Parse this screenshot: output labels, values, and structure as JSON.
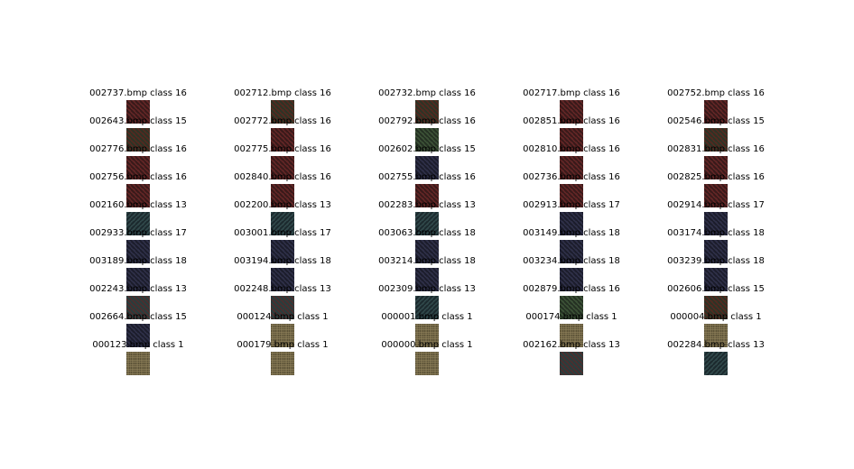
{
  "columns": [
    {
      "rows": [
        {
          "label": "002737.bmp class 16",
          "texture": "red"
        },
        {
          "label": "002643.bmp class 15",
          "texture": "redg"
        },
        {
          "label": "002776.bmp class 16",
          "texture": "red"
        },
        {
          "label": "002756.bmp class 16",
          "texture": "red"
        },
        {
          "label": "002160.bmp class 13",
          "texture": "teal"
        },
        {
          "label": "002933.bmp class 17",
          "texture": "navy"
        },
        {
          "label": "003189.bmp class 18",
          "texture": "navy"
        },
        {
          "label": "002243.bmp class 13",
          "texture": "mixed"
        },
        {
          "label": "002664.bmp class 15",
          "texture": "navy"
        },
        {
          "label": "000123.bmp class 1",
          "texture": "tan"
        }
      ]
    },
    {
      "rows": [
        {
          "label": "002712.bmp class 16",
          "texture": "redg"
        },
        {
          "label": "002772.bmp class 16",
          "texture": "red"
        },
        {
          "label": "002775.bmp class 16",
          "texture": "red"
        },
        {
          "label": "002840.bmp class 16",
          "texture": "red"
        },
        {
          "label": "002200.bmp class 13",
          "texture": "teal"
        },
        {
          "label": "003001.bmp class 17",
          "texture": "navy"
        },
        {
          "label": "003194.bmp class 18",
          "texture": "navy"
        },
        {
          "label": "002248.bmp class 13",
          "texture": "mixed"
        },
        {
          "label": "000124.bmp class 1",
          "texture": "tan"
        },
        {
          "label": "000179.bmp class 1",
          "texture": "tan"
        }
      ]
    },
    {
      "rows": [
        {
          "label": "002732.bmp class 16",
          "texture": "redg"
        },
        {
          "label": "002792.bmp class 16",
          "texture": "green"
        },
        {
          "label": "002602.bmp class 15",
          "texture": "navy"
        },
        {
          "label": "002755.bmp class 16",
          "texture": "red"
        },
        {
          "label": "002283.bmp class 13",
          "texture": "teal"
        },
        {
          "label": "003063.bmp class 18",
          "texture": "navy"
        },
        {
          "label": "003214.bmp class 18",
          "texture": "navy"
        },
        {
          "label": "002309.bmp class 13",
          "texture": "teal"
        },
        {
          "label": "000001.bmp class 1",
          "texture": "tan"
        },
        {
          "label": "000000.bmp class 1",
          "texture": "tan"
        }
      ]
    },
    {
      "rows": [
        {
          "label": "002717.bmp class 16",
          "texture": "red"
        },
        {
          "label": "002851.bmp class 16",
          "texture": "red"
        },
        {
          "label": "002810.bmp class 16",
          "texture": "red"
        },
        {
          "label": "002736.bmp class 16",
          "texture": "red"
        },
        {
          "label": "002913.bmp class 17",
          "texture": "navy"
        },
        {
          "label": "003149.bmp class 18",
          "texture": "navy"
        },
        {
          "label": "003234.bmp class 18",
          "texture": "navy"
        },
        {
          "label": "002879.bmp class 16",
          "texture": "green"
        },
        {
          "label": "000174.bmp class 1",
          "texture": "tan"
        },
        {
          "label": "002162.bmp class 13",
          "texture": "mixed"
        }
      ]
    },
    {
      "rows": [
        {
          "label": "002752.bmp class 16",
          "texture": "red"
        },
        {
          "label": "002546.bmp class 15",
          "texture": "redg"
        },
        {
          "label": "002831.bmp class 16",
          "texture": "red"
        },
        {
          "label": "002825.bmp class 16",
          "texture": "red"
        },
        {
          "label": "002914.bmp class 17",
          "texture": "navy"
        },
        {
          "label": "003174.bmp class 18",
          "texture": "navy"
        },
        {
          "label": "003239.bmp class 18",
          "texture": "navy"
        },
        {
          "label": "002606.bmp class 15",
          "texture": "redg"
        },
        {
          "label": "000004.bmp class 1",
          "texture": "tan"
        },
        {
          "label": "002284.bmp class 13",
          "texture": "teal"
        }
      ]
    }
  ]
}
